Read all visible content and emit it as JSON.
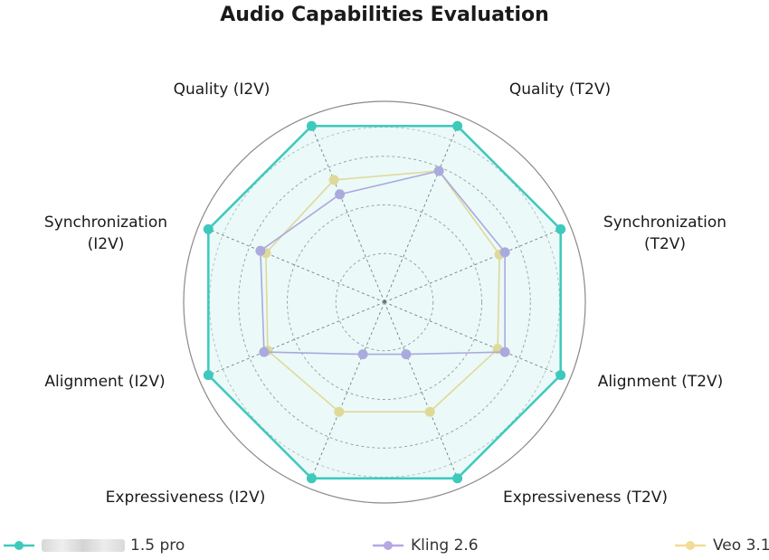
{
  "chart_data": {
    "type": "radar",
    "title": "Audio Capabilities Evaluation",
    "axes": [
      "Quality (T2V)",
      "Synchronization (T2V)",
      "Alignment (T2V)",
      "Expressiveness (T2V)",
      "Expressiveness (I2V)",
      "Alignment (I2V)",
      "Synchronization (I2V)",
      "Quality (I2V)"
    ],
    "axes_lines": [
      [
        "Quality (T2V)"
      ],
      [
        "Synchronization",
        "(T2V)"
      ],
      [
        "Alignment (T2V)"
      ],
      [
        "Expressiveness (T2V)"
      ],
      [
        "Expressiveness (I2V)"
      ],
      [
        "Alignment (I2V)"
      ],
      [
        "Synchronization",
        "(I2V)"
      ],
      [
        "Quality (I2V)"
      ]
    ],
    "range": [
      0,
      1
    ],
    "grid": true,
    "legend_position": "bottom",
    "series": [
      {
        "name": "1.5 pro",
        "color": "#3ec9bd",
        "fill": "rgba(62,201,189,0.10)",
        "values": [
          0.98,
          0.98,
          0.98,
          0.98,
          0.98,
          0.98,
          0.98,
          0.98
        ]
      },
      {
        "name": "Kling 2.6",
        "color": "#b7a7e3",
        "fill": "none",
        "values": [
          0.73,
          0.67,
          0.67,
          0.29,
          0.29,
          0.67,
          0.69,
          0.6
        ]
      },
      {
        "name": "Veo 3.1",
        "color": "#f2dc96",
        "fill": "none",
        "values": [
          0.73,
          0.64,
          0.63,
          0.61,
          0.61,
          0.65,
          0.66,
          0.68
        ]
      }
    ]
  }
}
